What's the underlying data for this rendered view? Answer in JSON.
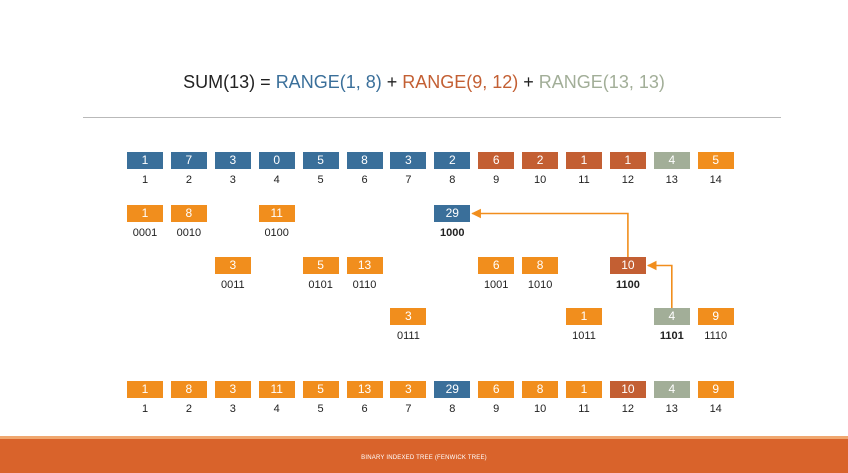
{
  "colors": {
    "blue": "#3a6f9a",
    "rust": "#c35f33",
    "sage": "#a2ae98",
    "orange": "#f18e1d",
    "formula_text": "#222222"
  },
  "formula": {
    "lhs": "SUM(13) = ",
    "range_a": "RANGE(1, 8)",
    "plus_1": " + ",
    "range_b": "RANGE(9, 12)",
    "plus_2": " + ",
    "range_c": "RANGE(13, 13)"
  },
  "top_row": [
    {
      "value": "1",
      "index": "1",
      "color": "blue"
    },
    {
      "value": "7",
      "index": "2",
      "color": "blue"
    },
    {
      "value": "3",
      "index": "3",
      "color": "blue"
    },
    {
      "value": "0",
      "index": "4",
      "color": "blue"
    },
    {
      "value": "5",
      "index": "5",
      "color": "blue"
    },
    {
      "value": "8",
      "index": "6",
      "color": "blue"
    },
    {
      "value": "3",
      "index": "7",
      "color": "blue"
    },
    {
      "value": "2",
      "index": "8",
      "color": "blue"
    },
    {
      "value": "6",
      "index": "9",
      "color": "rust"
    },
    {
      "value": "2",
      "index": "10",
      "color": "rust"
    },
    {
      "value": "1",
      "index": "11",
      "color": "rust"
    },
    {
      "value": "1",
      "index": "12",
      "color": "rust"
    },
    {
      "value": "4",
      "index": "13",
      "color": "sage"
    },
    {
      "value": "5",
      "index": "14",
      "color": "orange"
    }
  ],
  "tree_nodes": [
    {
      "value": "1",
      "label": "0001",
      "col": 1,
      "level": 1,
      "color": "orange",
      "bold": false
    },
    {
      "value": "8",
      "label": "0010",
      "col": 2,
      "level": 1,
      "color": "orange",
      "bold": false
    },
    {
      "value": "11",
      "label": "0100",
      "col": 4,
      "level": 1,
      "color": "orange",
      "bold": false
    },
    {
      "value": "29",
      "label": "1000",
      "col": 8,
      "level": 1,
      "color": "blue",
      "bold": true
    },
    {
      "value": "3",
      "label": "0011",
      "col": 3,
      "level": 2,
      "color": "orange",
      "bold": false
    },
    {
      "value": "5",
      "label": "0101",
      "col": 5,
      "level": 2,
      "color": "orange",
      "bold": false
    },
    {
      "value": "13",
      "label": "0110",
      "col": 6,
      "level": 2,
      "color": "orange",
      "bold": false
    },
    {
      "value": "6",
      "label": "1001",
      "col": 9,
      "level": 2,
      "color": "orange",
      "bold": false
    },
    {
      "value": "8",
      "label": "1010",
      "col": 10,
      "level": 2,
      "color": "orange",
      "bold": false
    },
    {
      "value": "10",
      "label": "1100",
      "col": 12,
      "level": 2,
      "color": "rust",
      "bold": true
    },
    {
      "value": "3",
      "label": "0111",
      "col": 7,
      "level": 3,
      "color": "orange",
      "bold": false
    },
    {
      "value": "1",
      "label": "1011",
      "col": 11,
      "level": 3,
      "color": "orange",
      "bold": false
    },
    {
      "value": "4",
      "label": "1101",
      "col": 13,
      "level": 3,
      "color": "sage",
      "bold": true
    },
    {
      "value": "9",
      "label": "1110",
      "col": 14,
      "level": 3,
      "color": "orange",
      "bold": false
    }
  ],
  "bottom_row": [
    {
      "value": "1",
      "index": "1",
      "color": "orange"
    },
    {
      "value": "8",
      "index": "2",
      "color": "orange"
    },
    {
      "value": "3",
      "index": "3",
      "color": "orange"
    },
    {
      "value": "11",
      "index": "4",
      "color": "orange"
    },
    {
      "value": "5",
      "index": "5",
      "color": "orange"
    },
    {
      "value": "13",
      "index": "6",
      "color": "orange"
    },
    {
      "value": "3",
      "index": "7",
      "color": "orange"
    },
    {
      "value": "29",
      "index": "8",
      "color": "blue"
    },
    {
      "value": "6",
      "index": "9",
      "color": "orange"
    },
    {
      "value": "8",
      "index": "10",
      "color": "orange"
    },
    {
      "value": "1",
      "index": "11",
      "color": "orange"
    },
    {
      "value": "10",
      "index": "12",
      "color": "rust"
    },
    {
      "value": "4",
      "index": "13",
      "color": "sage"
    },
    {
      "value": "9",
      "index": "14",
      "color": "orange"
    }
  ],
  "arrows": [
    {
      "from_col": 13,
      "from_level": 3,
      "to_col": 12,
      "to_level": 2
    },
    {
      "from_col": 12,
      "from_level": 2,
      "to_col": 8,
      "to_level": 1
    }
  ],
  "footer": {
    "text": "BINARY INDEXED TREE (FENWICK TREE)"
  }
}
